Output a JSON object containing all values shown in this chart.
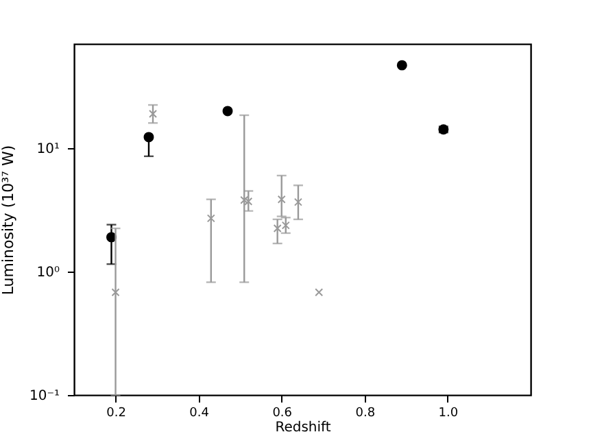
{
  "chart_data": {
    "type": "scatter",
    "xlabel": "Redshift",
    "ylabel": "Luminosity (10³⁷ W)",
    "log": "y",
    "grid": false,
    "xlim": [
      0.1,
      1.2
    ],
    "xticks": [
      0.2,
      0.4,
      0.6,
      0.8,
      {
        "value": 1.0,
        "label": "1.0"
      }
    ],
    "ylim": [
      0.1,
      70
    ],
    "yticks": [
      {
        "value": 0.1,
        "label": "10⁻¹"
      },
      {
        "value": 1,
        "label": "10⁰"
      },
      {
        "value": 10,
        "label": "10¹"
      }
    ],
    "series": [
      {
        "color": "#000000",
        "marker": "circle",
        "x": [
          0.19,
          0.28,
          0.47,
          0.89,
          0.99
        ],
        "values": [
          1.9,
          12.3,
          20,
          47,
          14.2
        ],
        "errors": [
          [
            1.15,
            2.4
          ],
          [
            8.6,
            12.5
          ],
          null,
          null,
          [
            13.4,
            15
          ]
        ]
      },
      {
        "color": "#999999",
        "marker": "cross",
        "x": [
          0.2,
          0.29,
          0.43,
          0.51,
          0.52,
          0.59,
          0.6,
          0.61,
          0.64,
          0.69
        ],
        "values": [
          0.68,
          19,
          2.7,
          3.8,
          3.7,
          2.24,
          3.85,
          2.37,
          3.66,
          0.68
        ],
        "errors": [
          [
            0.1,
            2.24
          ],
          [
            16,
            22.4
          ],
          [
            0.82,
            3.85
          ],
          [
            0.82,
            18.5
          ],
          [
            3.1,
            4.5
          ],
          [
            1.69,
            2.65
          ],
          [
            2.8,
            6.0
          ],
          [
            2.05,
            2.74
          ],
          [
            2.65,
            5.0
          ],
          null
        ]
      }
    ]
  }
}
